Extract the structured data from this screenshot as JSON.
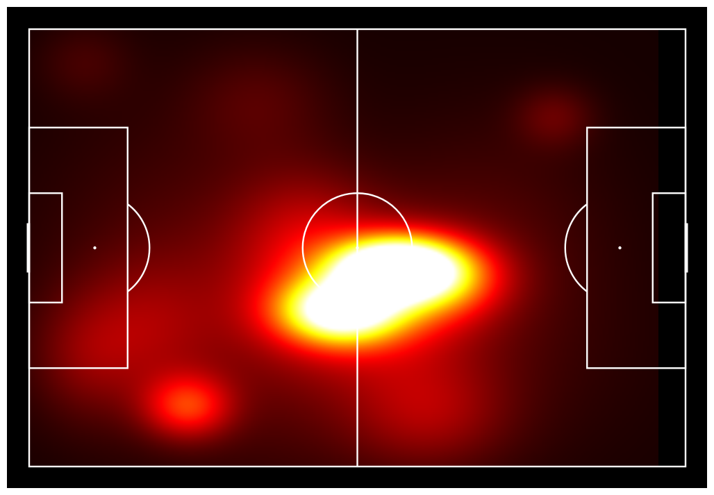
{
  "chart_data": {
    "type": "heatmap",
    "title": "",
    "xlabel": "",
    "ylabel": "",
    "x_range": [
      0,
      120
    ],
    "y_range": [
      0,
      80
    ],
    "y_axis": "top-to-bottom",
    "axes_visible": false,
    "grid": false,
    "colormap": "hot",
    "colormap_stops": [
      "#000000",
      "#1a0000",
      "#5a0000",
      "#b00000",
      "#ff0000",
      "#ff7a00",
      "#ffff00",
      "#ffffff"
    ],
    "pitch": {
      "background": "#000000",
      "line_color": "#ffffff",
      "length": 120,
      "width": 80,
      "penalty_area": {
        "depth": 18,
        "y": [
          18,
          62
        ]
      },
      "six_yard_box": {
        "depth": 6,
        "y": [
          30,
          50
        ]
      },
      "goal": {
        "y": [
          36,
          44
        ]
      },
      "penalty_spot_distance": 12,
      "centre_circle_radius": 10,
      "penalty_arc_radius": 10
    },
    "density_extent": {
      "x": [
        0,
        115
      ],
      "y": [
        0,
        80
      ]
    },
    "density_components": [
      {
        "x": 66.5,
        "y": 43.5,
        "sx": 7.5,
        "sy": 3.6,
        "w": 1.0
      },
      {
        "x": 57.0,
        "y": 51.5,
        "sx": 7.5,
        "sy": 4.0,
        "w": 0.84
      },
      {
        "x": 74.0,
        "y": 45.5,
        "sx": 8.0,
        "sy": 4.8,
        "w": 0.48
      },
      {
        "x": 61.0,
        "y": 49.0,
        "sx": 13.0,
        "sy": 8.5,
        "w": 0.32
      },
      {
        "x": 29.0,
        "y": 69.0,
        "sx": 5.5,
        "sy": 4.0,
        "w": 0.34
      },
      {
        "x": 50.0,
        "y": 36.0,
        "sx": 9.0,
        "sy": 8.0,
        "w": 0.14
      },
      {
        "x": 73.0,
        "y": 70.0,
        "sx": 10.0,
        "sy": 7.0,
        "w": 0.15
      },
      {
        "x": 21.0,
        "y": 55.0,
        "sx": 9.0,
        "sy": 9.0,
        "w": 0.12
      },
      {
        "x": 10.0,
        "y": 60.0,
        "sx": 7.0,
        "sy": 8.0,
        "w": 0.1
      },
      {
        "x": 96.0,
        "y": 16.0,
        "sx": 5.0,
        "sy": 4.0,
        "w": 0.1
      },
      {
        "x": 42.0,
        "y": 13.0,
        "sx": 9.0,
        "sy": 7.0,
        "w": 0.07
      },
      {
        "x": 10.0,
        "y": 6.0,
        "sx": 6.0,
        "sy": 5.0,
        "w": 0.06
      },
      {
        "x": 60.0,
        "y": 60.0,
        "sx": 28.0,
        "sy": 16.0,
        "w": 0.1
      },
      {
        "x": 30.0,
        "y": 40.0,
        "sx": 20.0,
        "sy": 20.0,
        "w": 0.07
      },
      {
        "x": 85.0,
        "y": 35.0,
        "sx": 15.0,
        "sy": 15.0,
        "w": 0.06
      }
    ]
  }
}
